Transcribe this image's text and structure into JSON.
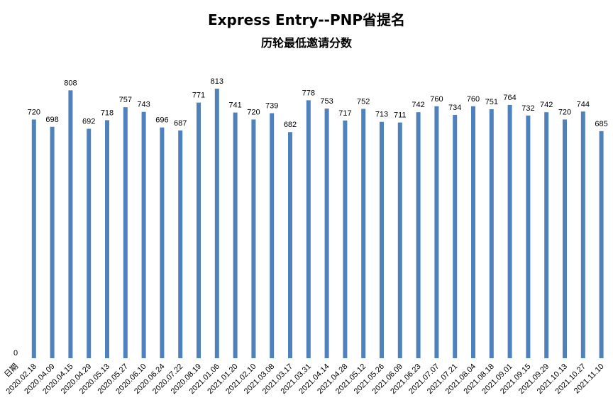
{
  "chart_data": {
    "type": "bar",
    "title": "Express Entry--PNP省提名",
    "subtitle": "历轮最低邀请分数",
    "first_category_label": "日期",
    "first_category_value_label": "0",
    "categories": [
      "2020.02.18",
      "2020.04.09",
      "2020.04.15",
      "2020.04.29",
      "2020.05.13",
      "2020.05.27",
      "2020.06.10",
      "2020.06.24",
      "2020.07.22",
      "2020.08.19",
      "2021.01.06",
      "2021.01.20",
      "2021.02.10",
      "2021.03.08",
      "2021.03.17",
      "2021.03.31",
      "2021.04.14",
      "2021.04.28",
      "2021.05.12",
      "2021.05.26",
      "2021.06.09",
      "2021.06.23",
      "2021.07.07",
      "2021.07.21",
      "2021.08.04",
      "2021.08.18",
      "2021.09.01",
      "2021.09.15",
      "2021.09.29",
      "2021.10.13",
      "2021.10.27",
      "2021.11.10"
    ],
    "values": [
      720,
      698,
      808,
      692,
      718,
      757,
      743,
      696,
      687,
      771,
      813,
      741,
      720,
      739,
      682,
      778,
      753,
      717,
      752,
      713,
      711,
      742,
      760,
      734,
      760,
      751,
      764,
      732,
      742,
      720,
      744,
      685
    ],
    "ylim": [
      0,
      900
    ],
    "bar_color": "#4F81BD",
    "grid": false,
    "legend": "none",
    "data_labels": true
  }
}
